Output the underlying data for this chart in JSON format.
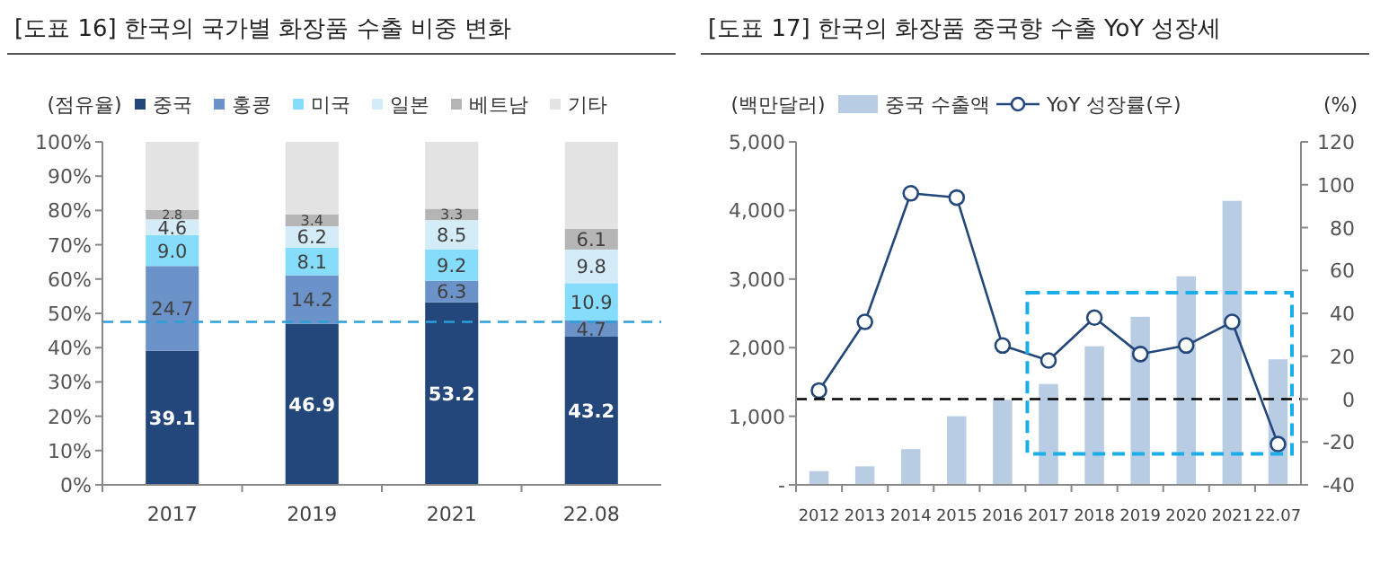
{
  "chart_data": [
    {
      "type": "bar",
      "title": "[도표 16] 한국의 국가별 화장품 수출 비중 변화",
      "ylabel": "(점유율)",
      "categories": [
        "2017",
        "2019",
        "2021",
        "22.08"
      ],
      "stacked": true,
      "legend": "top",
      "ylim": [
        0,
        100
      ],
      "yticks": [
        {
          "value": 0,
          "label": "0%"
        },
        {
          "value": 10,
          "label": "10%"
        },
        {
          "value": 20,
          "label": "20%"
        },
        {
          "value": 30,
          "label": "30%"
        },
        {
          "value": 40,
          "label": "40%"
        },
        {
          "value": 50,
          "label": "50%"
        },
        {
          "value": 60,
          "label": "60%"
        },
        {
          "value": 70,
          "label": "70%"
        },
        {
          "value": 80,
          "label": "80%"
        },
        {
          "value": 90,
          "label": "90%"
        },
        {
          "value": 100,
          "label": "100%"
        }
      ],
      "series": [
        {
          "name": "중국",
          "color": "#23477a",
          "values": [
            39.1,
            46.9,
            53.2,
            43.2
          ],
          "value_labels": [
            "39.1",
            "46.9",
            "53.2",
            "43.2"
          ]
        },
        {
          "name": "홍콩",
          "color": "#6b93c9",
          "values": [
            24.7,
            14.2,
            6.3,
            4.7
          ],
          "value_labels": [
            "24.7",
            "14.2",
            "6.3",
            "4.7"
          ]
        },
        {
          "name": "미국",
          "color": "#86dcfb",
          "values": [
            9.0,
            8.1,
            9.2,
            10.9
          ],
          "value_labels": [
            "9.0",
            "8.1",
            "9.2",
            "10.9"
          ]
        },
        {
          "name": "일본",
          "color": "#d3ecf8",
          "values": [
            4.6,
            6.2,
            8.5,
            9.8
          ],
          "value_labels": [
            "4.6",
            "6.2",
            "8.5",
            "9.8"
          ]
        },
        {
          "name": "베트남",
          "color": "#b5b5b5",
          "values": [
            2.8,
            3.4,
            3.3,
            6.1
          ],
          "value_labels": [
            "2.8",
            "3.4",
            "3.3",
            "6.1"
          ]
        },
        {
          "name": "기타",
          "color": "#e3e3e3",
          "values": [
            19.8,
            21.2,
            19.5,
            25.3
          ],
          "value_labels": [
            null,
            null,
            null,
            null
          ]
        }
      ],
      "ref_lines": [
        {
          "axis": "y",
          "value": 47.5,
          "color": "#2b9fd9",
          "line_style": "dashed"
        }
      ]
    },
    {
      "type": "bar",
      "title": "[도표 17] 한국의 화장품 중국향 수출 YoY 성장세",
      "ylabel": "(백만달러)",
      "y2label": "(%)",
      "categories": [
        "2012",
        "2013",
        "2014",
        "2015",
        "2016",
        "2017",
        "2018",
        "2019",
        "2020",
        "2021",
        "22.07"
      ],
      "legend": "top",
      "ylim": [
        0,
        5000
      ],
      "yticks": [
        {
          "value": 0,
          "label": "-"
        },
        {
          "value": 1000,
          "label": "1,000"
        },
        {
          "value": 2000,
          "label": "2,000"
        },
        {
          "value": 3000,
          "label": "3,000"
        },
        {
          "value": 4000,
          "label": "4,000"
        },
        {
          "value": 5000,
          "label": "5,000"
        }
      ],
      "y2lim": [
        -40,
        120
      ],
      "y2ticks": [
        -40,
        -20,
        0,
        20,
        40,
        60,
        80,
        100,
        120
      ],
      "series": [
        {
          "name": "중국 수출액",
          "type": "bar",
          "color": "#b8cce4",
          "values": [
            200,
            270,
            520,
            1000,
            1240,
            1470,
            2020,
            2450,
            3040,
            4140,
            1830
          ]
        },
        {
          "name": "YoY 성장률(우)",
          "type": "line",
          "axis": "y2",
          "color": "#23477a",
          "marker": "circle",
          "values": [
            4,
            36,
            96,
            94,
            25,
            18,
            38,
            21,
            25,
            36,
            -21
          ]
        }
      ],
      "ref_lines": [
        {
          "axis": "y2",
          "value": 0,
          "color": "#000000",
          "line_style": "dashed"
        }
      ]
    }
  ]
}
